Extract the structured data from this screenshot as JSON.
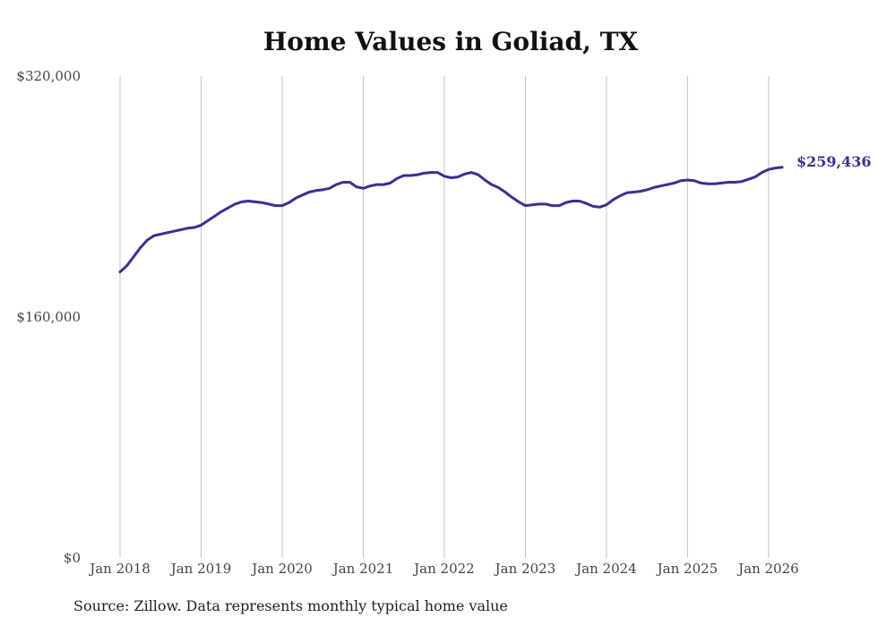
{
  "chart_data": {
    "type": "line",
    "title": "Home Values in Goliad, TX",
    "source": "Source: Zillow. Data represents monthly typical home value",
    "ylim": [
      0,
      320000
    ],
    "y_ticks": [
      {
        "value": 0,
        "label": "$0"
      },
      {
        "value": 160000,
        "label": "$160,000"
      },
      {
        "value": 320000,
        "label": "$320,000"
      }
    ],
    "x_range": [
      "2018-01",
      "2026-03"
    ],
    "x_ticks": [
      {
        "date": "2018-01",
        "label": "Jan 2018"
      },
      {
        "date": "2019-01",
        "label": "Jan 2019"
      },
      {
        "date": "2020-01",
        "label": "Jan 2020"
      },
      {
        "date": "2021-01",
        "label": "Jan 2021"
      },
      {
        "date": "2022-01",
        "label": "Jan 2022"
      },
      {
        "date": "2023-01",
        "label": "Jan 2023"
      },
      {
        "date": "2024-01",
        "label": "Jan 2024"
      },
      {
        "date": "2025-01",
        "label": "Jan 2025"
      },
      {
        "date": "2026-01",
        "label": "Jan 2026"
      }
    ],
    "grid": {
      "vertical": true,
      "horizontal": false
    },
    "line_color": "#3b3190",
    "end_label": "$259,436",
    "x": [
      "2018-01",
      "2018-02",
      "2018-03",
      "2018-04",
      "2018-05",
      "2018-06",
      "2018-07",
      "2018-08",
      "2018-09",
      "2018-10",
      "2018-11",
      "2018-12",
      "2019-01",
      "2019-02",
      "2019-03",
      "2019-04",
      "2019-05",
      "2019-06",
      "2019-07",
      "2019-08",
      "2019-09",
      "2019-10",
      "2019-11",
      "2019-12",
      "2020-01",
      "2020-02",
      "2020-03",
      "2020-04",
      "2020-05",
      "2020-06",
      "2020-07",
      "2020-08",
      "2020-09",
      "2020-10",
      "2020-11",
      "2020-12",
      "2021-01",
      "2021-02",
      "2021-03",
      "2021-04",
      "2021-05",
      "2021-06",
      "2021-07",
      "2021-08",
      "2021-09",
      "2021-10",
      "2021-11",
      "2021-12",
      "2022-01",
      "2022-02",
      "2022-03",
      "2022-04",
      "2022-05",
      "2022-06",
      "2022-07",
      "2022-08",
      "2022-09",
      "2022-10",
      "2022-11",
      "2022-12",
      "2023-01",
      "2023-02",
      "2023-03",
      "2023-04",
      "2023-05",
      "2023-06",
      "2023-07",
      "2023-08",
      "2023-09",
      "2023-10",
      "2023-11",
      "2023-12",
      "2024-01",
      "2024-02",
      "2024-03",
      "2024-04",
      "2024-05",
      "2024-06",
      "2024-07",
      "2024-08",
      "2024-09",
      "2024-10",
      "2024-11",
      "2024-12",
      "2025-01",
      "2025-02",
      "2025-03",
      "2025-04",
      "2025-05",
      "2025-06",
      "2025-07",
      "2025-08",
      "2025-09",
      "2025-10",
      "2025-11",
      "2025-12",
      "2026-01",
      "2026-02",
      "2026-03"
    ],
    "series": [
      {
        "values": [
          190000,
          194000,
          200000,
          206000,
          211000,
          214000,
          215000,
          216000,
          217000,
          218000,
          219000,
          219500,
          221000,
          224000,
          227000,
          230000,
          232500,
          235000,
          236500,
          237000,
          236500,
          236000,
          235000,
          234000,
          234000,
          236000,
          239000,
          241000,
          243000,
          244000,
          244500,
          245500,
          248000,
          249500,
          249500,
          246500,
          245500,
          247000,
          248000,
          248000,
          249000,
          252000,
          254000,
          254000,
          254500,
          255500,
          256000,
          256000,
          253500,
          252500,
          253000,
          255000,
          256000,
          254500,
          251000,
          248000,
          246000,
          243000,
          239500,
          236500,
          234000,
          234500,
          235000,
          235000,
          234000,
          234000,
          236000,
          237000,
          237000,
          235500,
          233500,
          233000,
          234500,
          238000,
          240500,
          242500,
          243000,
          243500,
          244500,
          246000,
          247000,
          248000,
          249000,
          250500,
          251000,
          250500,
          249000,
          248500,
          248500,
          249000,
          249500,
          249500,
          250000,
          251500,
          253000,
          256000,
          258000,
          259000,
          259436
        ]
      }
    ]
  }
}
